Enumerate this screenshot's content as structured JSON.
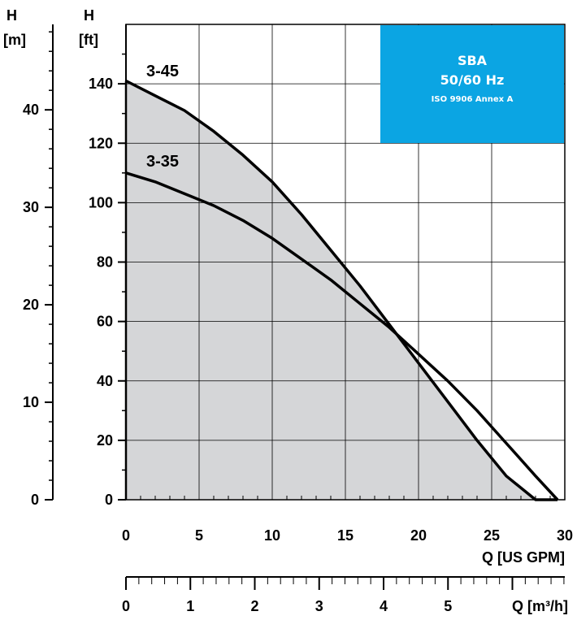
{
  "chart_data": {
    "type": "line",
    "title_box": {
      "line1": "SBA",
      "line2": "50/60 Hz",
      "line3": "ISO 9906 Annex A",
      "color": "#0BA5E3"
    },
    "shaded_region_color": "#D5D6D8",
    "x_primary": {
      "unit": "Q [US GPM]",
      "range": [
        0,
        30
      ],
      "ticks": [
        0,
        5,
        10,
        15,
        20,
        25,
        30
      ],
      "tick_labels": [
        "0",
        "5",
        "10",
        "15",
        "20",
        "25",
        "30"
      ]
    },
    "x_secondary": {
      "unit": "Q [m³/h]",
      "ticks": [
        0,
        1,
        2,
        3,
        4,
        5
      ],
      "tick_labels": [
        "0",
        "1",
        "2",
        "3",
        "4",
        "5"
      ]
    },
    "y_feet": {
      "unit_line1": "H",
      "unit_line2": "[ft]",
      "range": [
        0,
        160
      ],
      "ticks": [
        0,
        20,
        40,
        60,
        80,
        100,
        120,
        140
      ],
      "tick_labels": [
        "0",
        "20",
        "40",
        "60",
        "80",
        "100",
        "120",
        "140"
      ]
    },
    "y_meters": {
      "unit_line1": "H",
      "unit_line2": "[m]",
      "ticks": [
        0,
        10,
        20,
        30,
        40
      ],
      "tick_labels": [
        "0",
        "10",
        "20",
        "30",
        "40"
      ]
    },
    "series": [
      {
        "name": "3-45",
        "color": "#000000",
        "x": [
          0,
          2,
          4,
          6,
          8,
          10,
          12,
          14,
          16,
          18,
          20,
          22,
          24,
          26,
          28,
          29.5
        ],
        "y": [
          141,
          136,
          131,
          124,
          116,
          107,
          96,
          84,
          72,
          59,
          46,
          33,
          20,
          8,
          -2,
          0
        ]
      },
      {
        "name": "3-35",
        "color": "#000000",
        "x": [
          0,
          2,
          4,
          6,
          8,
          10,
          12,
          14,
          16,
          18,
          20,
          22,
          24,
          26,
          28,
          29.5
        ],
        "y": [
          110,
          107,
          103,
          99,
          94,
          88,
          81,
          74,
          66,
          58,
          49,
          40,
          30,
          19,
          8,
          0
        ]
      }
    ]
  }
}
